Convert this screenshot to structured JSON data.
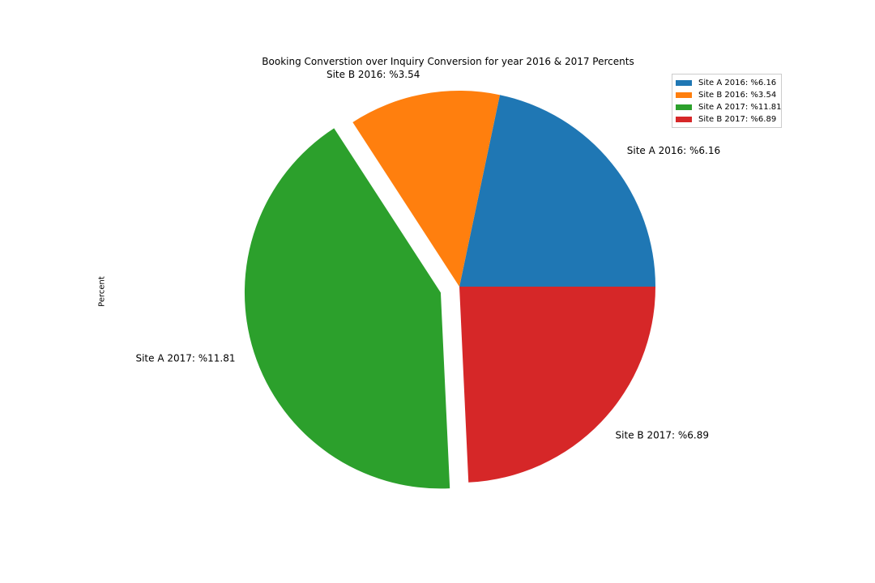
{
  "chart_data": {
    "type": "pie",
    "title": "Booking Converstion over Inquiry Conversion for year 2016 & 2017 Percents",
    "ylabel": "Percent",
    "legend_position": "top-right",
    "series": [
      {
        "categories": [
          "Site A 2016: %6.16",
          "Site B 2016: %3.54",
          "Site A 2017: %11.81",
          "Site B 2017: %6.89"
        ],
        "values": [
          6.16,
          3.54,
          11.81,
          6.89
        ],
        "colors": [
          "#1f77b4",
          "#ff7f0e",
          "#2ca02c",
          "#d62728"
        ],
        "explode": [
          0,
          0,
          0.1,
          0
        ]
      }
    ]
  }
}
